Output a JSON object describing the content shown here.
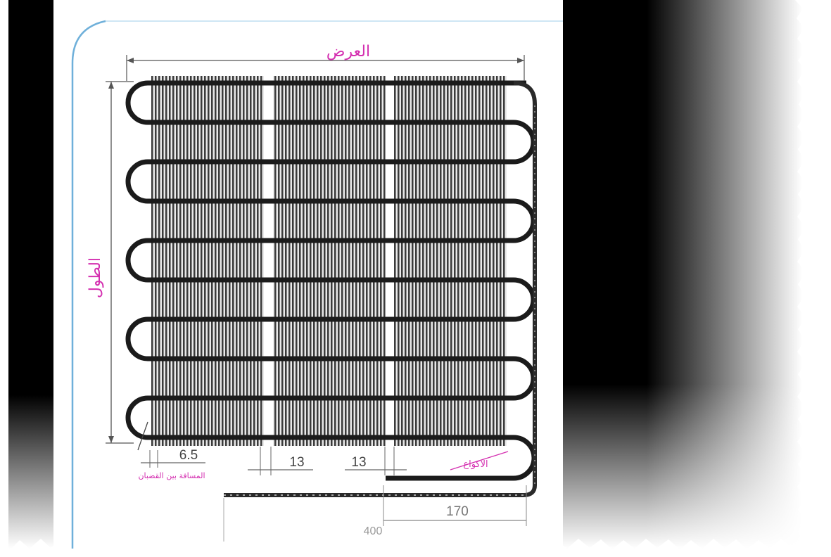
{
  "colors": {
    "label": "#d42fb0",
    "tube": "#1b1b1b",
    "fin": "#3a3a3a",
    "dimension": "#555555",
    "frame_accent": "#5aa6d6",
    "background_dark": "#000000"
  },
  "labels": {
    "width": "العرض",
    "length": "الطول",
    "rod_spacing": "المسافة بين القضبان",
    "bends": "الاكواع"
  },
  "dimensions": {
    "rod_gap": "6.5",
    "segment_1": "13",
    "segment_2": "13",
    "outlet_length": "170",
    "total_length": "400"
  }
}
